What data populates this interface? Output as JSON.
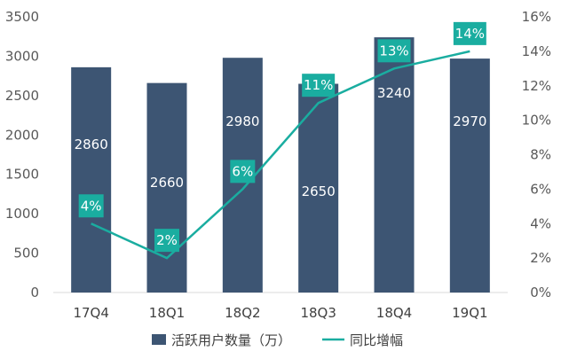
{
  "chart_data": {
    "type": "bar",
    "categories": [
      "17Q4",
      "18Q1",
      "18Q2",
      "18Q3",
      "18Q4",
      "19Q1"
    ],
    "series": [
      {
        "name": "活跃用户数量（万）",
        "type": "bar",
        "axis": "left",
        "color": "#3d5573",
        "values": [
          2860,
          2660,
          2980,
          2650,
          3240,
          2970
        ],
        "labels": [
          "2860",
          "2660",
          "2980",
          "2650",
          "3240",
          "2970"
        ]
      },
      {
        "name": "同比增幅",
        "type": "line",
        "axis": "right",
        "color": "#1aada0",
        "values": [
          4,
          2,
          6,
          11,
          13,
          14
        ],
        "labels": [
          "4%",
          "2%",
          "6%",
          "11%",
          "13%",
          "14%"
        ]
      }
    ],
    "y_left": {
      "lim": [
        0,
        3500
      ],
      "ticks": [
        "0",
        "500",
        "1000",
        "1500",
        "2000",
        "2500",
        "3000",
        "3500"
      ]
    },
    "y_right": {
      "lim": [
        0,
        16
      ],
      "ticks": [
        "0%",
        "2%",
        "4%",
        "6%",
        "8%",
        "10%",
        "12%",
        "14%",
        "16%"
      ]
    },
    "grid": false,
    "legend": "bottom"
  }
}
